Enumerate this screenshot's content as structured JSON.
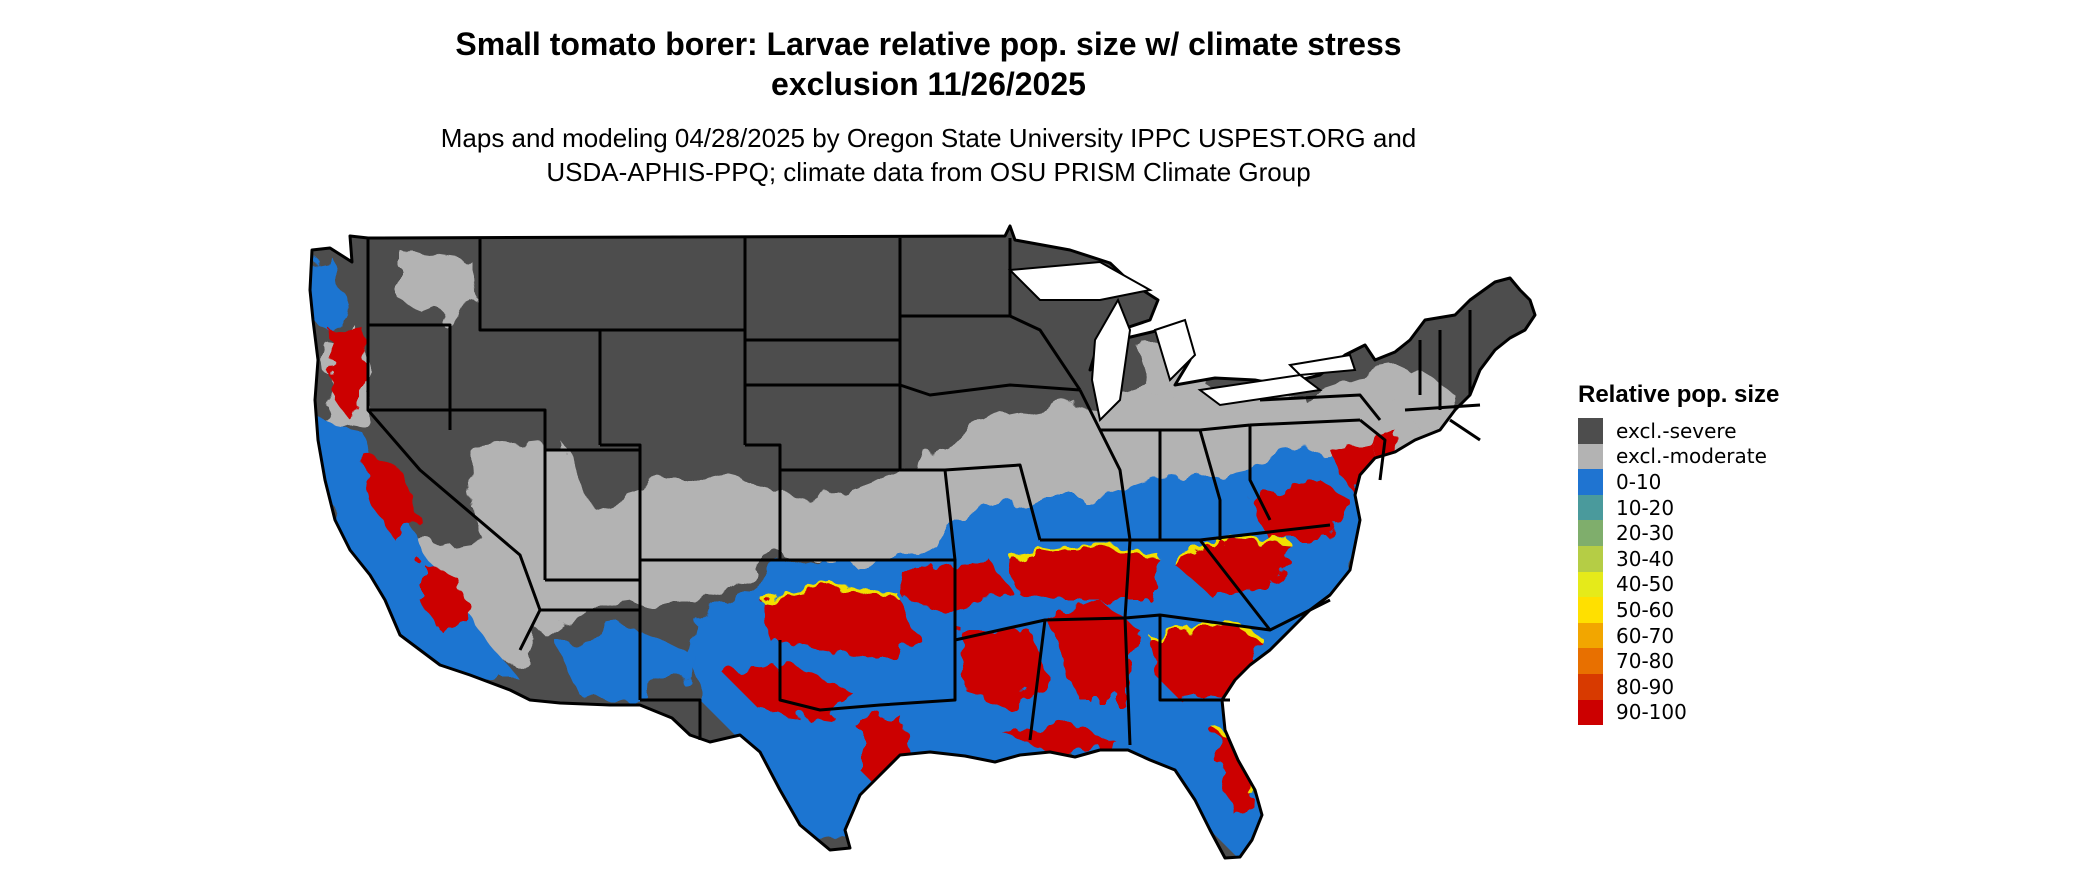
{
  "title": {
    "line1": "Small tomato borer: Larvae relative pop. size w/ climate stress",
    "line2": "exclusion 11/26/2025"
  },
  "subtitle": {
    "line1": "Maps and modeling 04/28/2025 by Oregon State University IPPC USPEST.ORG and",
    "line2": "USDA-APHIS-PPQ; climate data from OSU PRISM Climate Group"
  },
  "map": {
    "region": "Contiguous United States",
    "colors": {
      "excl_severe": "#4d4d4d",
      "excl_moderate": "#b3b3b3",
      "low": "#1f74d1",
      "high": "#d40000",
      "border": "#000000",
      "transition_yellow": "#f2e000"
    }
  },
  "legend": {
    "title": "Relative pop. size",
    "items": [
      {
        "label": "excl.-severe",
        "color": "#4d4d4d"
      },
      {
        "label": "excl.-moderate",
        "color": "#b3b3b3"
      },
      {
        "label": "0-10",
        "color": "#1f74d1"
      },
      {
        "label": "10-20",
        "color": "#4a9a9c"
      },
      {
        "label": "20-30",
        "color": "#7fae6c"
      },
      {
        "label": "30-40",
        "color": "#b5cd45"
      },
      {
        "label": "40-50",
        "color": "#e5ea1a"
      },
      {
        "label": "50-60",
        "color": "#ffe000"
      },
      {
        "label": "60-70",
        "color": "#f2a600"
      },
      {
        "label": "70-80",
        "color": "#e87000"
      },
      {
        "label": "80-90",
        "color": "#d83a00"
      },
      {
        "label": "90-100",
        "color": "#cc0000"
      }
    ]
  }
}
